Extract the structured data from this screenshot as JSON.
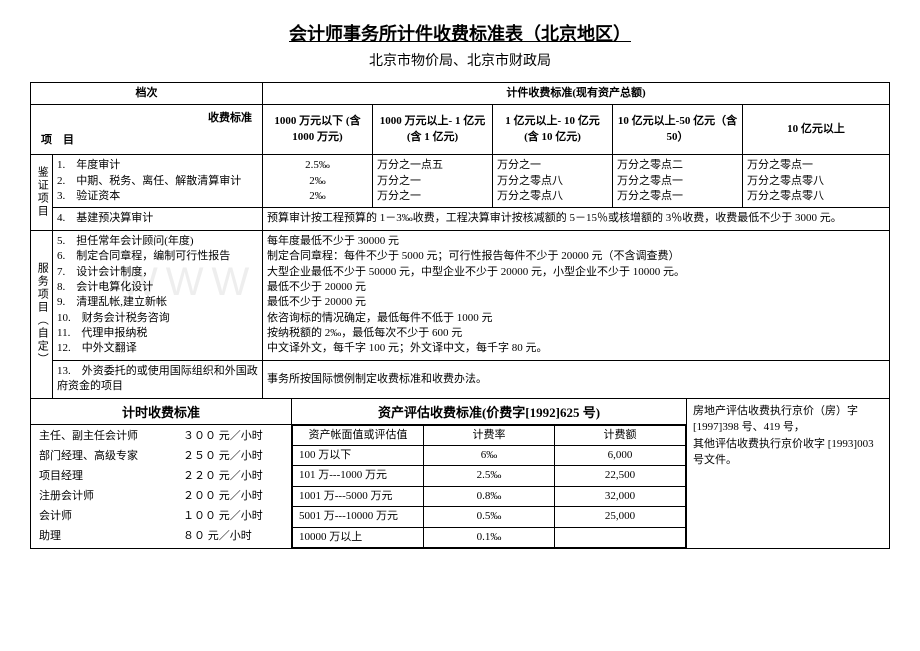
{
  "title": "会计师事务所计件收费标准表（北京地区）",
  "subtitle": "北京市物价局、北京市财政局",
  "watermark": "WWW",
  "mainTable": {
    "headers": {
      "tier": "档次",
      "standard": "计件收费标准(现有资产总额)",
      "feeLabel": "收费标准",
      "itemLabel": "项　目",
      "cols": [
        "1000 万元以下 (含 1000 万元)",
        "1000 万元以上- 1 亿元 (含 1 亿元)",
        "1 亿元以上- 10 亿元 (含 10 亿元)",
        "10 亿元以上-50 亿元（含 50）",
        "10 亿元以上"
      ]
    },
    "section1": {
      "label": "鉴证项目",
      "rows123": {
        "items": "1.　年度审计\n2.　中期、税务、离任、解散清算审计\n3.　验证资本",
        "c1": "2.5‰\n2‰\n2‰",
        "c2": "万分之一点五\n万分之一\n万分之一",
        "c3": "万分之一\n万分之零点八\n万分之零点八",
        "c4": "万分之零点二\n万分之零点一\n万分之零点一",
        "c5": "万分之零点一\n万分之零点零八\n万分之零点零八"
      },
      "row4": {
        "item": "4.　基建预决算审计",
        "desc": "预算审计按工程预算的 1－3‰收费，工程决算审计按核减额的 5－15％或核增额的 3％收费，收费最低不少于 3000 元。"
      }
    },
    "section2": {
      "label": "服务项目（自定）",
      "rows": {
        "items": "5.　担任常年会计顾问(年度)\n6.　制定合同章程，编制可行性报告\n7.　设计会计制度，\n8.　会计电算化设计\n9.　清理乱帐,建立新帐\n10.　财务会计税务咨询\n11.　代理申报纳税\n12.　中外文翻译",
        "desc": "每年度最低不少于 30000 元\n制定合同章程：每件不少于 5000 元；可行性报告每件不少于 20000 元（不含调查费）\n大型企业最低不少于 50000 元，中型企业不少于 20000 元，小型企业不少于 10000 元。\n最低不少于 20000 元\n最低不少于 20000 元\n依咨询标的情况确定，最低每件不低于 1000 元\n按纳税额的 2‰，最低每次不少于 600 元\n中文译外文，每千字 100 元；外文译中文，每千字 80 元。"
      },
      "row13": {
        "item": "13.　外资委托的或使用国际组织和外国政府资金的项目",
        "desc": "事务所按国际惯例制定收费标准和收费办法。"
      }
    }
  },
  "hourly": {
    "title": "计时收费标准",
    "rows": [
      {
        "role": "主任、副主任会计师",
        "rate": "３００ 元／小时"
      },
      {
        "role": "部门经理、高级专家",
        "rate": "２５０ 元／小时"
      },
      {
        "role": "项目经理",
        "rate": "２２０ 元／小时"
      },
      {
        "role": "注册会计师",
        "rate": "２００ 元／小时"
      },
      {
        "role": "会计师",
        "rate": "１００ 元／小时"
      },
      {
        "role": "助理",
        "rate": "８０ 元／小时"
      }
    ]
  },
  "asset": {
    "title": "资产评估收费标准(价费字[1992]625 号)",
    "headers": [
      "资产帐面值或评估值",
      "计费率",
      "计费额"
    ],
    "rows": [
      [
        "100 万以下",
        "6‰",
        "6,000"
      ],
      [
        "101 万---1000 万元",
        "2.5‰",
        "22,500"
      ],
      [
        "1001 万---5000 万元",
        "0.8‰",
        "32,000"
      ],
      [
        "5001 万---10000 万元",
        "0.5‰",
        "25,000"
      ],
      [
        "10000 万以上",
        "0.1‰",
        ""
      ]
    ]
  },
  "notes": "房地产评估收费执行京价（房）字 [1997]398 号、419 号，\n其他评估收费执行京价收字 [1993]003 号文件。"
}
